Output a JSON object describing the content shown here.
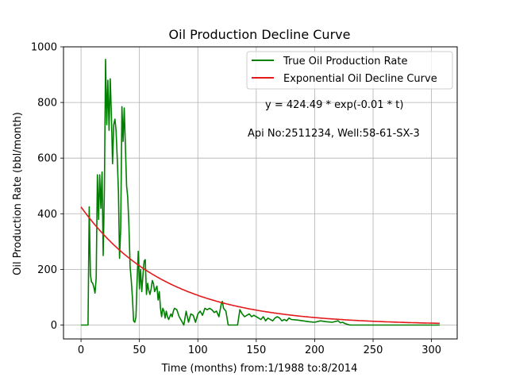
{
  "chart_data": {
    "type": "line",
    "title": "Oil Production Decline Curve",
    "xlabel": "Time (months) from:1/1988 to:8/2014",
    "ylabel": "Oil Production Rate (bbl/month)",
    "xlim": [
      -15,
      322
    ],
    "ylim": [
      -50,
      1000
    ],
    "xticks": [
      0,
      50,
      100,
      150,
      200,
      250,
      300
    ],
    "yticks": [
      0,
      200,
      400,
      600,
      800,
      1000
    ],
    "grid": true,
    "legend_position": "top-right",
    "annotations": [
      "y = 424.49 * exp(-0.01 * t)",
      "Api No:2511234, Well:58-61-SX-3"
    ],
    "series": [
      {
        "name": "True Oil Production Rate",
        "color": "#008000",
        "x": [
          0,
          1,
          2,
          3,
          4,
          5,
          6,
          7,
          8,
          9,
          10,
          11,
          12,
          13,
          14,
          15,
          16,
          17,
          18,
          19,
          20,
          21,
          22,
          23,
          24,
          25,
          26,
          27,
          28,
          29,
          30,
          31,
          32,
          33,
          34,
          35,
          36,
          37,
          38,
          39,
          40,
          41,
          42,
          43,
          44,
          45,
          46,
          47,
          48,
          49,
          50,
          51,
          52,
          53,
          54,
          55,
          56,
          57,
          58,
          59,
          60,
          61,
          62,
          63,
          64,
          65,
          66,
          67,
          68,
          69,
          70,
          71,
          72,
          73,
          74,
          75,
          76,
          77,
          78,
          79,
          80,
          82,
          84,
          86,
          88,
          90,
          92,
          94,
          96,
          98,
          100,
          102,
          104,
          106,
          108,
          110,
          112,
          114,
          116,
          118,
          120,
          121,
          122,
          124,
          126,
          128,
          130,
          132,
          134,
          136,
          138,
          140,
          142,
          144,
          146,
          148,
          150,
          152,
          154,
          156,
          158,
          160,
          162,
          164,
          166,
          168,
          170,
          172,
          174,
          176,
          178,
          180,
          185,
          190,
          195,
          200,
          205,
          210,
          215,
          220,
          222,
          224,
          226,
          230,
          240,
          250,
          260,
          270,
          280,
          290,
          300,
          307
        ],
        "y": [
          0,
          0,
          0,
          0,
          0,
          0,
          0,
          425,
          180,
          155,
          150,
          135,
          115,
          170,
          540,
          380,
          540,
          420,
          550,
          250,
          480,
          955,
          720,
          880,
          700,
          885,
          760,
          580,
          720,
          740,
          700,
          600,
          480,
          240,
          350,
          785,
          660,
          780,
          640,
          500,
          460,
          360,
          210,
          160,
          100,
          15,
          10,
          30,
          160,
          265,
          130,
          200,
          120,
          180,
          230,
          235,
          110,
          150,
          125,
          110,
          130,
          160,
          150,
          120,
          130,
          140,
          90,
          120,
          60,
          30,
          60,
          50,
          25,
          50,
          30,
          20,
          30,
          40,
          30,
          50,
          60,
          55,
          30,
          15,
          0,
          50,
          10,
          40,
          35,
          10,
          40,
          50,
          35,
          60,
          55,
          60,
          55,
          45,
          50,
          30,
          75,
          85,
          60,
          50,
          0,
          0,
          0,
          0,
          0,
          55,
          40,
          30,
          35,
          40,
          30,
          35,
          30,
          25,
          20,
          30,
          15,
          25,
          20,
          15,
          25,
          30,
          25,
          15,
          20,
          15,
          25,
          20,
          18,
          15,
          12,
          10,
          15,
          12,
          10,
          15,
          8,
          10,
          5,
          0,
          0,
          0,
          0,
          0,
          0,
          0,
          0,
          0
        ]
      },
      {
        "name": "Exponential Oil Decline Curve",
        "color": "#e31a1c",
        "model": {
          "a": 424.49,
          "b": 0.0138,
          "t_end": 307
        }
      }
    ]
  }
}
